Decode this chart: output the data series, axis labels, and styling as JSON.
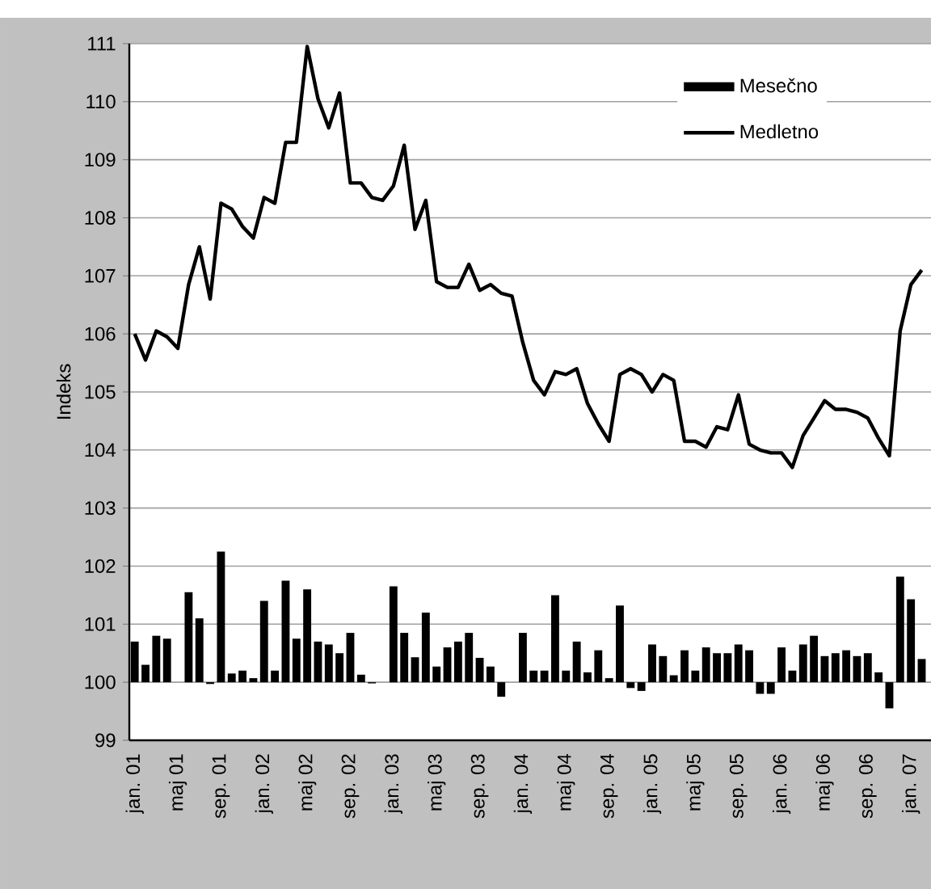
{
  "chart_data": {
    "type": "line",
    "ylabel": "Indeks",
    "categories": [
      "jan. 01",
      null,
      null,
      null,
      "maj 01",
      null,
      null,
      null,
      "sep. 01",
      null,
      null,
      null,
      "jan. 02",
      null,
      null,
      null,
      "maj 02",
      null,
      null,
      null,
      "sep. 02",
      null,
      null,
      null,
      "jan. 03",
      null,
      null,
      null,
      "maj 03",
      null,
      null,
      null,
      "sep. 03",
      null,
      null,
      null,
      "jan. 04",
      null,
      null,
      null,
      "maj 04",
      null,
      null,
      null,
      "sep. 04",
      null,
      null,
      null,
      "jan. 05",
      null,
      null,
      null,
      "maj 05",
      null,
      null,
      null,
      "sep. 05",
      null,
      null,
      null,
      "jan. 06",
      null,
      null,
      null,
      "maj 06",
      null,
      null,
      null,
      "sep. 06",
      null,
      null,
      null,
      "jan. 07",
      null
    ],
    "series": [
      {
        "name": "Mesečno",
        "type": "bar",
        "color": "#000000",
        "base": [
          100,
          100,
          100,
          100,
          null,
          100,
          100,
          100,
          100,
          100,
          100,
          100,
          100,
          100,
          100,
          100,
          100,
          100,
          100,
          100,
          100,
          100,
          100,
          null,
          100,
          100,
          100,
          100,
          100,
          100,
          100,
          100,
          100,
          100,
          100,
          null,
          100,
          100,
          100,
          100,
          100,
          100,
          100,
          100,
          100,
          100,
          100,
          100,
          100,
          100,
          100,
          100,
          100,
          100,
          100,
          100,
          100,
          100,
          100,
          100,
          100,
          100,
          100,
          100,
          100,
          100,
          100,
          100,
          100,
          100,
          100,
          100,
          100,
          100
        ],
        "values": [
          0.7,
          0.3,
          0.8,
          0.75,
          null,
          1.55,
          1.1,
          -0.03,
          2.25,
          0.15,
          0.2,
          0.07,
          1.4,
          0.2,
          1.75,
          0.75,
          1.6,
          0.7,
          0.65,
          0.5,
          0.85,
          0.13,
          -0.02,
          null,
          1.65,
          0.85,
          0.43,
          1.2,
          0.27,
          0.6,
          0.7,
          0.85,
          0.42,
          0.27,
          -0.25,
          null,
          0.85,
          0.2,
          0.2,
          1.5,
          0.2,
          0.7,
          0.17,
          0.55,
          0.07,
          1.32,
          -0.1,
          -0.15,
          0.65,
          0.45,
          0.12,
          0.55,
          0.2,
          0.6,
          0.5,
          0.5,
          0.65,
          0.55,
          -0.2,
          -0.2,
          0.6,
          0.2,
          0.65,
          0.8,
          0.45,
          0.5,
          0.55,
          0.45,
          0.5,
          0.17,
          -0.45,
          1.82,
          1.43,
          0.4
        ]
      },
      {
        "name": "Medletno",
        "color": "#000000",
        "values": [
          106.0,
          105.55,
          106.05,
          105.95,
          105.75,
          106.85,
          107.5,
          106.6,
          108.25,
          108.15,
          107.85,
          107.65,
          108.35,
          108.25,
          109.3,
          109.3,
          110.95,
          110.05,
          109.55,
          110.15,
          108.6,
          108.6,
          108.35,
          108.3,
          108.55,
          109.25,
          107.8,
          108.3,
          106.9,
          106.8,
          106.8,
          107.2,
          106.75,
          106.85,
          106.7,
          106.65,
          105.85,
          105.2,
          104.95,
          105.35,
          105.3,
          105.4,
          104.8,
          104.45,
          104.15,
          105.3,
          105.4,
          105.3,
          105.0,
          105.3,
          105.2,
          104.15,
          104.15,
          104.05,
          104.4,
          104.35,
          104.95,
          104.1,
          104.0,
          103.95,
          103.95,
          103.7,
          104.25,
          104.55,
          104.85,
          104.7,
          104.7,
          104.65,
          104.55,
          104.2,
          103.9,
          106.05,
          106.85,
          107.1
        ]
      }
    ],
    "ylim": [
      99,
      111
    ],
    "yticks": [
      99,
      100,
      101,
      102,
      103,
      104,
      105,
      106,
      107,
      108,
      109,
      110,
      111
    ],
    "grid": "y",
    "legend": "top right",
    "marker": "none",
    "line_style": "solid"
  }
}
